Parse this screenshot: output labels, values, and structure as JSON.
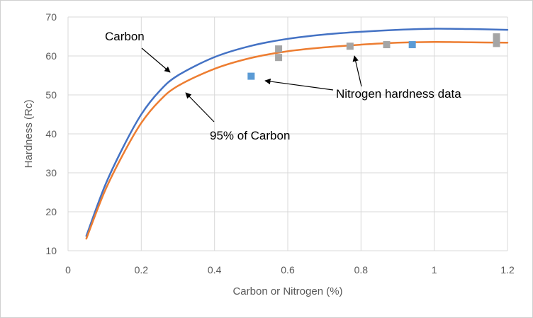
{
  "chart_data": {
    "type": "line",
    "title": "",
    "xlabel": "Carbon or Nitrogen (%)",
    "ylabel": "Hardness (Rc)",
    "xlim": [
      0,
      1.2
    ],
    "ylim": [
      10,
      70
    ],
    "xticks": [
      "0",
      "0.2",
      "0.4",
      "0.6",
      "0.8",
      "1",
      "1.2"
    ],
    "yticks": [
      "10",
      "20",
      "30",
      "40",
      "50",
      "60",
      "70"
    ],
    "grid": true,
    "series": [
      {
        "name": "Carbon",
        "kind": "line",
        "color": "#4472c4",
        "x": [
          0.05,
          0.1,
          0.15,
          0.2,
          0.25,
          0.3,
          0.4,
          0.5,
          0.6,
          0.7,
          0.8,
          0.9,
          1.0,
          1.1,
          1.2
        ],
        "y": [
          13.8,
          26.5,
          36.5,
          45,
          51,
          55,
          59.7,
          62.6,
          64.4,
          65.5,
          66.2,
          66.7,
          67,
          66.9,
          66.7
        ]
      },
      {
        "name": "95% of Carbon",
        "kind": "line",
        "color": "#ed7d31",
        "x": [
          0.05,
          0.1,
          0.15,
          0.2,
          0.25,
          0.3,
          0.4,
          0.5,
          0.6,
          0.7,
          0.8,
          0.9,
          1.0,
          1.1,
          1.2
        ],
        "y": [
          13.1,
          25.2,
          34.7,
          42.8,
          48.5,
          52.3,
          56.7,
          59.5,
          61.2,
          62.2,
          62.9,
          63.4,
          63.6,
          63.5,
          63.4
        ]
      },
      {
        "name": "Nitrogen hardness data",
        "kind": "scatter",
        "color": "#a5a5a5",
        "x": [
          0.575,
          0.575,
          0.77,
          0.87,
          1.17,
          1.17
        ],
        "y": [
          61.8,
          59.6,
          62.5,
          62.9,
          64.9,
          63.2
        ]
      },
      {
        "name": "Nitrogen hardness data",
        "kind": "scatter",
        "color": "#5b9bd5",
        "x": [
          0.5,
          0.94
        ],
        "y": [
          54.8,
          62.9
        ]
      }
    ],
    "annotations": [
      {
        "text": "Carbon",
        "target": [
          0.28,
          55
        ]
      },
      {
        "text": "95% of Carbon",
        "target": [
          0.32,
          52
        ]
      },
      {
        "text": "Nitrogen hardness data",
        "targets": [
          [
            0.53,
            54.8
          ],
          [
            0.78,
            62.3
          ]
        ]
      }
    ]
  }
}
